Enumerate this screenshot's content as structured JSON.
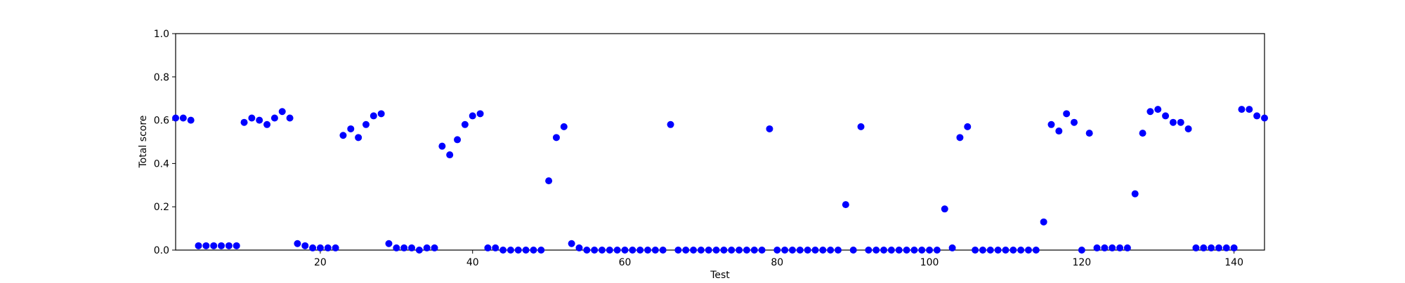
{
  "chart_data": {
    "type": "scatter",
    "title": "",
    "xlabel": "Test",
    "ylabel": "Total score",
    "xlim": [
      1,
      144
    ],
    "ylim": [
      0.0,
      1.0
    ],
    "grid": false,
    "marker_color": "#0000ff",
    "x_ticks": [
      20,
      40,
      60,
      80,
      100,
      120,
      140
    ],
    "x_tick_labels": [
      "20",
      "40",
      "60",
      "80",
      "100",
      "120",
      "140"
    ],
    "y_ticks": [
      0.0,
      0.2,
      0.4,
      0.6,
      0.8,
      1.0
    ],
    "y_tick_labels": [
      "0.0",
      "0.2",
      "0.4",
      "0.6",
      "0.8",
      "1.0"
    ],
    "points": [
      [
        1,
        0.61
      ],
      [
        2,
        0.61
      ],
      [
        3,
        0.6
      ],
      [
        4,
        0.02
      ],
      [
        5,
        0.02
      ],
      [
        6,
        0.02
      ],
      [
        7,
        0.02
      ],
      [
        8,
        0.02
      ],
      [
        9,
        0.02
      ],
      [
        10,
        0.59
      ],
      [
        11,
        0.61
      ],
      [
        12,
        0.6
      ],
      [
        13,
        0.58
      ],
      [
        14,
        0.61
      ],
      [
        15,
        0.64
      ],
      [
        16,
        0.61
      ],
      [
        17,
        0.03
      ],
      [
        18,
        0.02
      ],
      [
        19,
        0.01
      ],
      [
        20,
        0.01
      ],
      [
        21,
        0.01
      ],
      [
        22,
        0.01
      ],
      [
        23,
        0.53
      ],
      [
        24,
        0.56
      ],
      [
        25,
        0.52
      ],
      [
        26,
        0.58
      ],
      [
        27,
        0.62
      ],
      [
        28,
        0.63
      ],
      [
        29,
        0.03
      ],
      [
        30,
        0.01
      ],
      [
        31,
        0.01
      ],
      [
        32,
        0.01
      ],
      [
        33,
        0.0
      ],
      [
        34,
        0.01
      ],
      [
        35,
        0.01
      ],
      [
        36,
        0.48
      ],
      [
        37,
        0.44
      ],
      [
        38,
        0.51
      ],
      [
        39,
        0.58
      ],
      [
        40,
        0.62
      ],
      [
        41,
        0.63
      ],
      [
        42,
        0.01
      ],
      [
        43,
        0.01
      ],
      [
        44,
        0.0
      ],
      [
        45,
        0.0
      ],
      [
        46,
        0.0
      ],
      [
        47,
        0.0
      ],
      [
        48,
        0.0
      ],
      [
        49,
        0.0
      ],
      [
        50,
        0.32
      ],
      [
        51,
        0.52
      ],
      [
        52,
        0.57
      ],
      [
        53,
        0.03
      ],
      [
        54,
        0.01
      ],
      [
        55,
        0.0
      ],
      [
        56,
        0.0
      ],
      [
        57,
        0.0
      ],
      [
        58,
        0.0
      ],
      [
        59,
        0.0
      ],
      [
        60,
        0.0
      ],
      [
        61,
        0.0
      ],
      [
        62,
        0.0
      ],
      [
        63,
        0.0
      ],
      [
        64,
        0.0
      ],
      [
        65,
        0.0
      ],
      [
        66,
        0.58
      ],
      [
        67,
        0.0
      ],
      [
        68,
        0.0
      ],
      [
        69,
        0.0
      ],
      [
        70,
        0.0
      ],
      [
        71,
        0.0
      ],
      [
        72,
        0.0
      ],
      [
        73,
        0.0
      ],
      [
        74,
        0.0
      ],
      [
        75,
        0.0
      ],
      [
        76,
        0.0
      ],
      [
        77,
        0.0
      ],
      [
        78,
        0.0
      ],
      [
        79,
        0.56
      ],
      [
        80,
        0.0
      ],
      [
        81,
        0.0
      ],
      [
        82,
        0.0
      ],
      [
        83,
        0.0
      ],
      [
        84,
        0.0
      ],
      [
        85,
        0.0
      ],
      [
        86,
        0.0
      ],
      [
        87,
        0.0
      ],
      [
        88,
        0.0
      ],
      [
        89,
        0.21
      ],
      [
        90,
        0.0
      ],
      [
        91,
        0.57
      ],
      [
        92,
        0.0
      ],
      [
        93,
        0.0
      ],
      [
        94,
        0.0
      ],
      [
        95,
        0.0
      ],
      [
        96,
        0.0
      ],
      [
        97,
        0.0
      ],
      [
        98,
        0.0
      ],
      [
        99,
        0.0
      ],
      [
        100,
        0.0
      ],
      [
        101,
        0.0
      ],
      [
        102,
        0.19
      ],
      [
        103,
        0.01
      ],
      [
        104,
        0.52
      ],
      [
        105,
        0.57
      ],
      [
        106,
        0.0
      ],
      [
        107,
        0.0
      ],
      [
        108,
        0.0
      ],
      [
        109,
        0.0
      ],
      [
        110,
        0.0
      ],
      [
        111,
        0.0
      ],
      [
        112,
        0.0
      ],
      [
        113,
        0.0
      ],
      [
        114,
        0.0
      ],
      [
        115,
        0.13
      ],
      [
        116,
        0.58
      ],
      [
        117,
        0.55
      ],
      [
        118,
        0.63
      ],
      [
        119,
        0.59
      ],
      [
        120,
        0.0
      ],
      [
        121,
        0.54
      ],
      [
        122,
        0.01
      ],
      [
        123,
        0.01
      ],
      [
        124,
        0.01
      ],
      [
        125,
        0.01
      ],
      [
        126,
        0.01
      ],
      [
        127,
        0.26
      ],
      [
        128,
        0.54
      ],
      [
        129,
        0.64
      ],
      [
        130,
        0.65
      ],
      [
        131,
        0.62
      ],
      [
        132,
        0.59
      ],
      [
        133,
        0.59
      ],
      [
        134,
        0.56
      ],
      [
        135,
        0.01
      ],
      [
        136,
        0.01
      ],
      [
        137,
        0.01
      ],
      [
        138,
        0.01
      ],
      [
        139,
        0.01
      ],
      [
        140,
        0.01
      ],
      [
        141,
        0.65
      ],
      [
        142,
        0.65
      ],
      [
        143,
        0.62
      ],
      [
        144,
        0.61
      ]
    ]
  }
}
